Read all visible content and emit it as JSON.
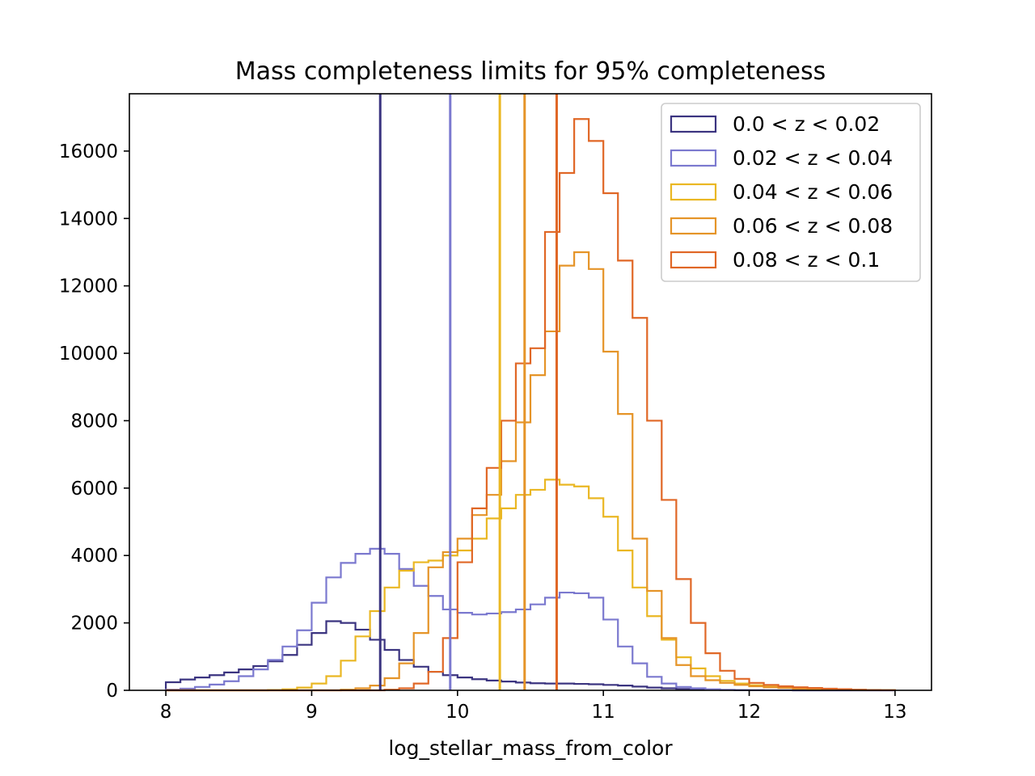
{
  "chart_data": {
    "type": "histogram",
    "title": "Mass completeness limits for 95% completeness",
    "xlabel": "log_stellar_mass_from_color",
    "ylabel": "",
    "xlim": [
      7.75,
      13.25
    ],
    "ylim": [
      0,
      17700
    ],
    "xticks": [
      8,
      9,
      10,
      11,
      12,
      13
    ],
    "yticks": [
      0,
      2000,
      4000,
      6000,
      8000,
      10000,
      12000,
      14000,
      16000
    ],
    "grid": false,
    "legend_position": "top-right",
    "bins": {
      "start": 8.0,
      "end": 13.0,
      "count": 50
    },
    "series": [
      {
        "name": "0.0 < z < 0.02",
        "color": "#3b3480",
        "completeness_limit": 9.47,
        "values": [
          240,
          320,
          380,
          450,
          530,
          620,
          720,
          860,
          1050,
          1350,
          1700,
          2050,
          2000,
          1800,
          1500,
          1200,
          900,
          700,
          550,
          450,
          380,
          330,
          290,
          260,
          230,
          210,
          200,
          200,
          190,
          180,
          160,
          140,
          110,
          80,
          60,
          40,
          25,
          15,
          10,
          6,
          4,
          2,
          1,
          0,
          0,
          0,
          0,
          0,
          0,
          0
        ]
      },
      {
        "name": "0.02 < z < 0.04",
        "color": "#7b79cf",
        "completeness_limit": 9.95,
        "values": [
          20,
          50,
          100,
          170,
          270,
          420,
          620,
          900,
          1300,
          1780,
          2600,
          3350,
          3780,
          4050,
          4200,
          4050,
          3600,
          3100,
          2800,
          2400,
          2300,
          2250,
          2280,
          2320,
          2400,
          2550,
          2750,
          2900,
          2880,
          2750,
          2100,
          1300,
          800,
          400,
          200,
          100,
          60,
          30,
          15,
          8,
          4,
          2,
          1,
          0,
          0,
          0,
          0,
          0,
          0,
          0
        ]
      },
      {
        "name": "0.04 < z < 0.06",
        "color": "#eab723",
        "completeness_limit": 10.29,
        "values": [
          0,
          0,
          0,
          0,
          0,
          0,
          0,
          10,
          30,
          80,
          200,
          420,
          880,
          1600,
          2350,
          3050,
          3550,
          3800,
          3850,
          4000,
          4150,
          4500,
          5100,
          5400,
          5800,
          5950,
          6250,
          6100,
          6050,
          5700,
          5150,
          4150,
          3050,
          2200,
          1500,
          980,
          650,
          420,
          280,
          200,
          150,
          110,
          80,
          60,
          40,
          25,
          15,
          8,
          4,
          2
        ]
      },
      {
        "name": "0.06 < z < 0.08",
        "color": "#e59428",
        "completeness_limit": 10.46,
        "values": [
          0,
          0,
          0,
          0,
          0,
          0,
          0,
          0,
          0,
          0,
          0,
          0,
          20,
          60,
          140,
          360,
          800,
          1700,
          3650,
          4100,
          4500,
          5200,
          5800,
          6800,
          7950,
          9350,
          10650,
          12600,
          13000,
          12500,
          10050,
          8200,
          4500,
          2950,
          1550,
          750,
          420,
          300,
          220,
          160,
          120,
          90,
          70,
          50,
          35,
          25,
          15,
          10,
          6,
          3
        ]
      },
      {
        "name": "0.08 < z < 0.1",
        "color": "#e06726",
        "completeness_limit": 10.68,
        "values": [
          0,
          0,
          0,
          0,
          0,
          0,
          0,
          0,
          0,
          0,
          0,
          0,
          0,
          0,
          0,
          20,
          60,
          200,
          550,
          1550,
          3800,
          5400,
          6600,
          8000,
          9700,
          10150,
          13600,
          15350,
          16950,
          16300,
          14750,
          12750,
          11050,
          8000,
          5650,
          3300,
          2000,
          1100,
          580,
          340,
          220,
          160,
          120,
          90,
          70,
          50,
          35,
          20,
          10,
          5
        ]
      }
    ]
  }
}
